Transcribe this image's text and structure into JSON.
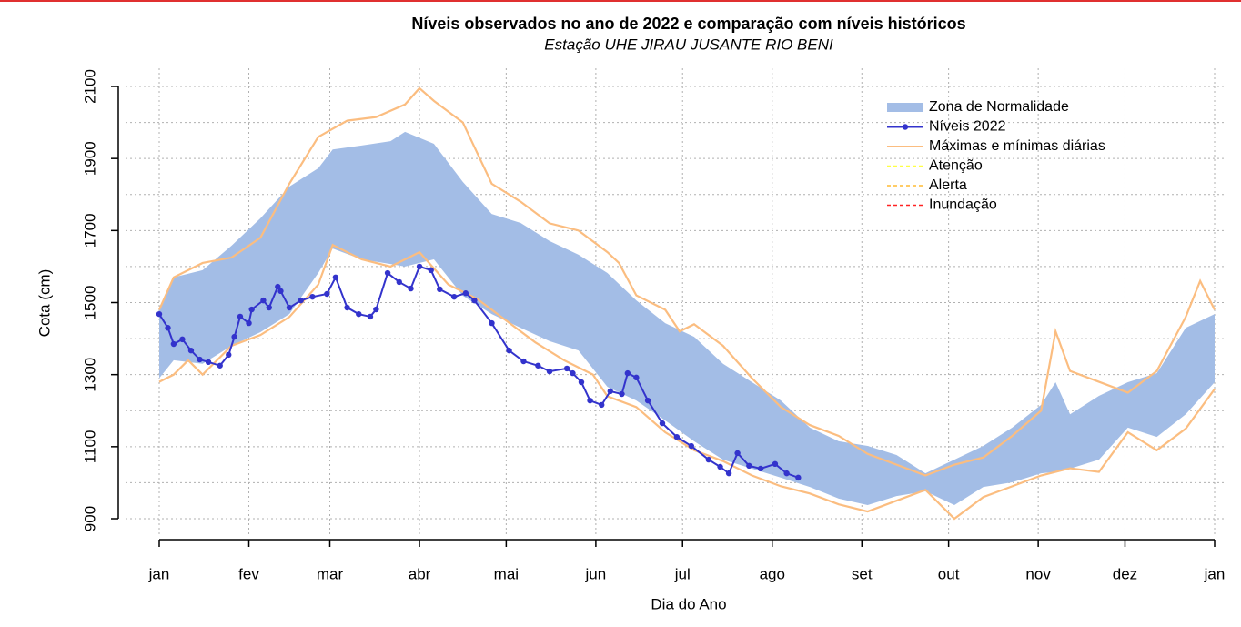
{
  "chart_data": {
    "type": "line",
    "title": "Níveis observados no ano de 2022 e comparação com níveis históricos",
    "subtitle": "Estação UHE JIRAU JUSANTE RIO BENI",
    "x_label": "Dia do Ano",
    "y_label": "Cota (cm)",
    "xlim": [
      1,
      366
    ],
    "xticks": [
      {
        "value": 1,
        "label": "jan"
      },
      {
        "value": 32,
        "label": "fev"
      },
      {
        "value": 60,
        "label": "mar"
      },
      {
        "value": 91,
        "label": "abr"
      },
      {
        "value": 121,
        "label": "mai"
      },
      {
        "value": 152,
        "label": "jun"
      },
      {
        "value": 182,
        "label": "jul"
      },
      {
        "value": 213,
        "label": "ago"
      },
      {
        "value": 244,
        "label": "set"
      },
      {
        "value": 274,
        "label": "out"
      },
      {
        "value": 305,
        "label": "nov"
      },
      {
        "value": 335,
        "label": "dez"
      },
      {
        "value": 366,
        "label": "jan"
      }
    ],
    "ylim": [
      900,
      2100
    ],
    "yticks": [
      900,
      1100,
      1300,
      1500,
      1700,
      1900,
      2100
    ],
    "ygrid": [
      900,
      1000,
      1100,
      1200,
      1300,
      1400,
      1500,
      1600,
      1700,
      1800,
      1900,
      2000,
      2100
    ],
    "grid": true,
    "legend": "top-right",
    "band": {
      "name": "Zona de Normalidade",
      "color": "#a3bde6",
      "x": [
        1,
        6,
        16,
        26,
        36,
        46,
        56,
        61,
        71,
        81,
        86,
        96,
        106,
        116,
        126,
        136,
        146,
        156,
        166,
        176,
        186,
        196,
        206,
        216,
        226,
        236,
        246,
        256,
        266,
        276,
        286,
        296,
        306,
        311,
        316,
        326,
        336,
        346,
        356,
        366
      ],
      "upper": [
        1480,
        1570,
        1590,
        1658,
        1734,
        1822,
        1873,
        1925,
        1936,
        1948,
        1974,
        1941,
        1835,
        1746,
        1721,
        1671,
        1633,
        1582,
        1506,
        1443,
        1405,
        1330,
        1279,
        1228,
        1153,
        1115,
        1102,
        1077,
        1026,
        1064,
        1102,
        1153,
        1216,
        1279,
        1190,
        1241,
        1279,
        1304,
        1430,
        1468
      ],
      "lower": [
        1290,
        1340,
        1330,
        1380,
        1418,
        1468,
        1582,
        1650,
        1620,
        1607,
        1600,
        1620,
        1519,
        1468,
        1430,
        1393,
        1367,
        1266,
        1228,
        1173,
        1115,
        1064,
        1039,
        1014,
        988,
        956,
        938,
        963,
        976,
        938,
        988,
        1001,
        1026,
        1030,
        1039,
        1064,
        1153,
        1127,
        1190,
        1279
      ]
    },
    "series": [
      {
        "name": "Níveis 2022",
        "color": "#3333cc",
        "markers": true,
        "x": [
          1,
          4,
          6,
          9,
          12,
          15,
          18,
          22,
          25,
          27,
          29,
          32,
          33,
          37,
          39,
          42,
          43,
          46,
          50,
          54,
          59,
          62,
          66,
          70,
          74,
          76,
          80,
          84,
          88,
          91,
          95,
          98,
          103,
          107,
          110,
          116,
          122,
          127,
          132,
          136,
          142,
          144,
          147,
          150,
          154,
          157,
          161,
          163,
          166,
          170,
          175,
          180,
          185,
          191,
          195,
          198,
          201,
          205,
          209,
          214,
          218,
          222
        ],
        "values": [
          1468,
          1430,
          1385,
          1398,
          1367,
          1342,
          1335,
          1325,
          1355,
          1405,
          1461,
          1443,
          1481,
          1506,
          1486,
          1544,
          1532,
          1486,
          1506,
          1516,
          1524,
          1570,
          1486,
          1468,
          1461,
          1481,
          1582,
          1557,
          1539,
          1600,
          1590,
          1537,
          1516,
          1526,
          1506,
          1443,
          1367,
          1337,
          1325,
          1309,
          1317,
          1304,
          1279,
          1228,
          1216,
          1254,
          1246,
          1304,
          1292,
          1228,
          1165,
          1127,
          1102,
          1064,
          1044,
          1026,
          1082,
          1047,
          1039,
          1052,
          1026,
          1014
        ]
      },
      {
        "name": "Máximas e mínimas diárias",
        "color": "#fbbd80",
        "x": [
          1,
          6,
          16,
          26,
          36,
          46,
          56,
          66,
          76,
          86,
          91,
          96,
          106,
          116,
          126,
          136,
          146,
          156,
          160,
          166,
          176,
          181,
          186,
          196,
          206,
          216,
          226,
          236,
          246,
          256,
          266,
          276,
          286,
          296,
          306,
          311,
          316,
          326,
          336,
          346,
          356,
          361,
          366
        ],
        "values": [
          1480,
          1570,
          1610,
          1625,
          1680,
          1830,
          1960,
          2005,
          2015,
          2050,
          2095,
          2060,
          2000,
          1830,
          1780,
          1720,
          1700,
          1640,
          1610,
          1520,
          1480,
          1420,
          1440,
          1380,
          1290,
          1210,
          1160,
          1130,
          1080,
          1050,
          1020,
          1050,
          1070,
          1130,
          1200,
          1420,
          1310,
          1280,
          1250,
          1310,
          1460,
          1560,
          1480
        ],
        "x_min": [
          1,
          6,
          11,
          16,
          26,
          36,
          46,
          56,
          61,
          71,
          81,
          91,
          101,
          111,
          121,
          131,
          141,
          151,
          156,
          166,
          176,
          186,
          196,
          206,
          216,
          226,
          236,
          246,
          256,
          266,
          276,
          286,
          296,
          306,
          316,
          326,
          336,
          346,
          356,
          366
        ],
        "min": [
          1280,
          1300,
          1340,
          1300,
          1380,
          1410,
          1460,
          1550,
          1660,
          1620,
          1600,
          1640,
          1550,
          1510,
          1450,
          1390,
          1340,
          1300,
          1240,
          1210,
          1140,
          1090,
          1060,
          1020,
          990,
          970,
          940,
          920,
          950,
          980,
          900,
          960,
          990,
          1020,
          1040,
          1030,
          1140,
          1090,
          1150,
          1260
        ]
      }
    ],
    "reference_lines": [
      {
        "name": "Atenção",
        "color": "#ffff44"
      },
      {
        "name": "Alerta",
        "color": "#ffbb33"
      },
      {
        "name": "Inundação",
        "color": "#ff2222"
      }
    ]
  }
}
